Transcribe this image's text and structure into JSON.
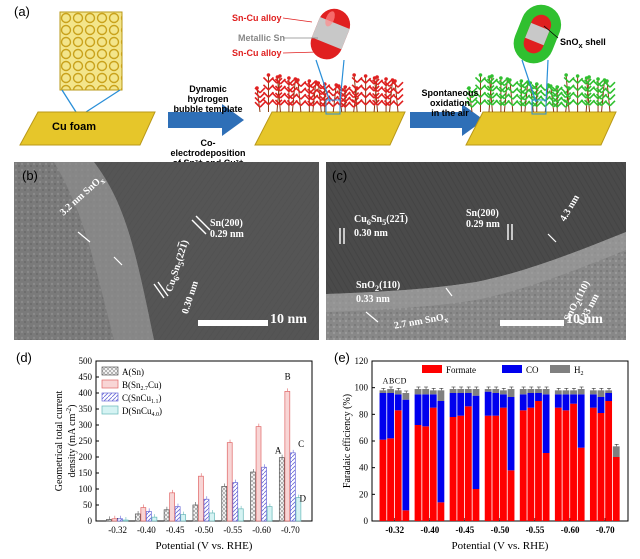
{
  "panel_a": {
    "label": "(a)",
    "cu_foam": "Cu foam",
    "arrow1_top": [
      "Dynamic hydrogen",
      "bubble template"
    ],
    "arrow1_bottom": [
      "Co-electrodeposition",
      "of Sn²⁺ and Cu²⁺"
    ],
    "arrow2_top": [
      "Spontaneous oxidation",
      "in the air"
    ],
    "legend_top": "Sn-Cu alloy",
    "legend_mid": "Metallic Sn",
    "legend_bot": "Sn-Cu alloy",
    "shell": "SnO",
    "shell_sub": "x",
    "shell_suffix": " shell",
    "colors": {
      "alloy": "#e02020",
      "metallic": "#b8b8b8",
      "shell": "#30c030",
      "foam": "#e6c62a",
      "arrow": "#2e6fb7"
    }
  },
  "panel_b": {
    "label": "(b)",
    "sno_thick": "3.2 nm SnO",
    "sno_sub": "x",
    "sn200": "Sn(200)",
    "sn200_d": "0.29 nm",
    "cusn": "Cu",
    "cusn_sub1": "6",
    "cusn_mid": "Sn",
    "cusn_sub2": "5",
    "cusn_plane": "(22",
    "cusn_plane_bar": "1",
    "cusn_close": ")",
    "cusn_d": "0.30 nm",
    "scale": "10 nm"
  },
  "panel_c": {
    "label": "(c)",
    "cusn": "Cu",
    "cusn_sub1": "6",
    "cusn_mid": "Sn",
    "cusn_sub2": "5",
    "cusn_plane": "(22",
    "cusn_plane_bar": "1",
    "cusn_close": ")",
    "cusn_d": "0.30 nm",
    "sn200": "Sn(200)",
    "sn200_d": "0.29 nm",
    "thick1": "4.3 nm",
    "sno2a": "SnO",
    "sno2a_sub": "2",
    "sno2a_plane": "(110)",
    "sno2a_d": "0.33 nm",
    "sno2b": "SnO",
    "sno2b_sub": "2",
    "sno2b_plane": "(110)",
    "sno2b_d": "0.33 nm",
    "thick2": "2.7 nm SnO",
    "thick2_sub": "x",
    "scale": "10 nm"
  },
  "panel_d": {
    "label": "(d)",
    "chart_data": {
      "type": "bar",
      "categories": [
        "-0.32",
        "-0.40",
        "-0.45",
        "-0.50",
        "-0.55",
        "-0.60",
        "-0.70"
      ],
      "xlabel": "Potential (V vs. RHE)",
      "ylabel_line1": "Geometrical total current",
      "ylabel_line2": "density (mA cm",
      "ylabel_sup": "-2",
      "ylabel_close": ")",
      "ylim": [
        0,
        500
      ],
      "yticks": [
        "0",
        "50",
        "100",
        "150",
        "200",
        "250",
        "300",
        "350",
        "400",
        "450",
        "500"
      ],
      "series": [
        {
          "name": "A(Sn)",
          "values": [
            5,
            22,
            35,
            50,
            108,
            153,
            198
          ],
          "color": "#f0f0f0",
          "stroke": "#555555",
          "hatch": "grid"
        },
        {
          "name": "B(Sn",
          "sub": "2.7",
          "suffix": "Cu)",
          "values": [
            7,
            42,
            88,
            140,
            245,
            295,
            405
          ],
          "color": "#f8d5d5",
          "stroke": "#e06666",
          "hatch": "none"
        },
        {
          "name": "C(SnCu",
          "sub": "1.1",
          "suffix": ")",
          "values": [
            7,
            30,
            45,
            68,
            120,
            168,
            213
          ],
          "color": "#ffffff",
          "stroke": "#6a6ad8",
          "hatch": "diag"
        },
        {
          "name": "D(SnCu",
          "sub": "4.0",
          "suffix": ")",
          "values": [
            3,
            12,
            20,
            25,
            38,
            45,
            73
          ],
          "color": "#d5f3f3",
          "stroke": "#66b8b8",
          "hatch": "none"
        }
      ],
      "bar_letters": [
        "A",
        "B",
        "C",
        "D"
      ],
      "legend": "top-left"
    }
  },
  "panel_e": {
    "label": "(e)",
    "chart_data": {
      "type": "bar",
      "stacked": true,
      "categories": [
        "-0.32",
        "-0.40",
        "-0.45",
        "-0.50",
        "-0.55",
        "-0.60",
        "-0.70"
      ],
      "xlabel": "Potential (V vs. RHE)",
      "ylabel": "Faradaic efficiency (%)",
      "ylim": [
        0,
        120
      ],
      "yticks": [
        "0",
        "20",
        "40",
        "60",
        "80",
        "100",
        "120"
      ],
      "group_labels": "ABCD",
      "series": [
        {
          "name": "Formate",
          "color": "#ff0000",
          "values": [
            [
              61,
              62,
              83,
              8
            ],
            [
              72,
              71,
              85,
              14
            ],
            [
              78,
              79,
              86,
              24
            ],
            [
              79,
              79,
              85,
              38
            ],
            [
              83,
              85,
              90,
              51
            ],
            [
              85,
              83,
              88,
              55
            ],
            [
              85,
              81,
              90,
              48
            ]
          ]
        },
        {
          "name": "CO",
          "color": "#0000ee",
          "values": [
            [
              35,
              34,
              12,
              83
            ],
            [
              23,
              24,
              10,
              76
            ],
            [
              18,
              17,
              10,
              70
            ],
            [
              18,
              17,
              10,
              55
            ],
            [
              12,
              11,
              6,
              44
            ],
            [
              10,
              12,
              7,
              40
            ],
            [
              10,
              12,
              6,
              0
            ]
          ]
        },
        {
          "name": "H",
          "sub": "2",
          "color": "#808080",
          "values": [
            [
              2,
              3,
              3,
              5
            ],
            [
              4,
              4,
              3,
              8
            ],
            [
              3,
              3,
              3,
              5
            ],
            [
              2,
              3,
              3,
              6
            ],
            [
              4,
              3,
              3,
              4
            ],
            [
              3,
              3,
              3,
              4
            ],
            [
              3,
              5,
              2,
              8
            ]
          ]
        }
      ],
      "legend": "top"
    }
  }
}
